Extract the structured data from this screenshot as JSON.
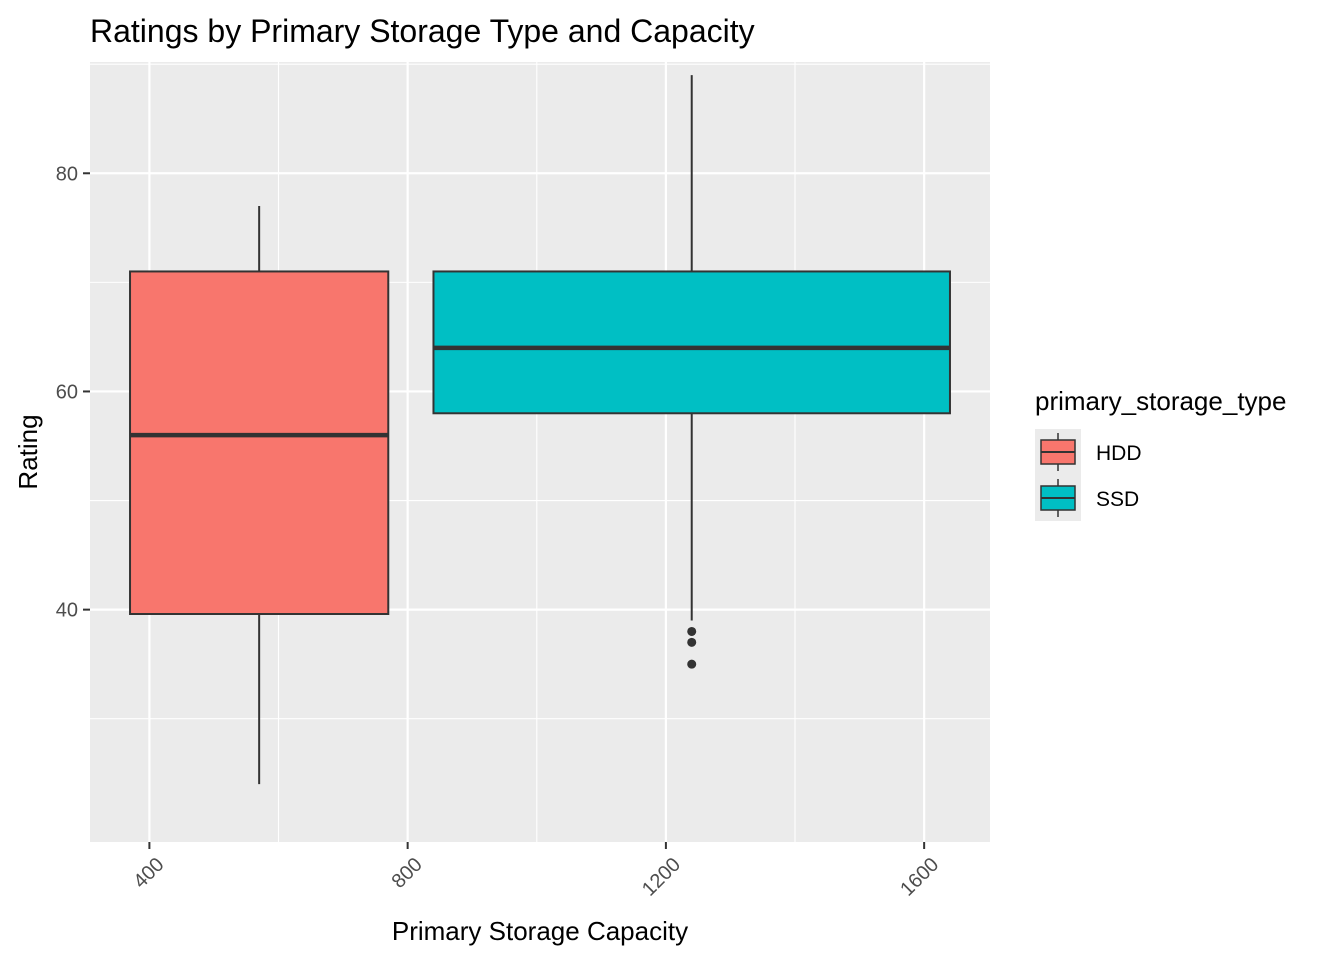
{
  "chart_data": {
    "type": "boxplot",
    "title": "Ratings by Primary Storage Type and Capacity",
    "xlabel": "Primary Storage Capacity",
    "ylabel": "Rating",
    "xlim": [
      308,
      1702
    ],
    "ylim": [
      18.7,
      90.2
    ],
    "x_ticks": [
      400,
      800,
      1200,
      1600
    ],
    "x_minor_ticks": [
      600,
      1000,
      1400
    ],
    "y_ticks": [
      40,
      60,
      80
    ],
    "y_minor_ticks": [
      30,
      50,
      70,
      90
    ],
    "grid": true,
    "legend": {
      "title": "primary_storage_type",
      "position": "right"
    },
    "series": [
      {
        "name": "HDD",
        "color": "#F8766D",
        "x_range": [
          370,
          770
        ],
        "center": 570,
        "whisker_low": 24,
        "q1": 39.6,
        "median": 56,
        "q3": 71,
        "whisker_high": 77,
        "outliers": []
      },
      {
        "name": "SSD",
        "color": "#00BFC4",
        "x_range": [
          840,
          1640
        ],
        "center": 1240,
        "whisker_low": 39,
        "q1": 58,
        "median": 64,
        "q3": 71,
        "whisker_high": 89,
        "outliers": [
          38,
          37,
          35
        ]
      }
    ]
  }
}
